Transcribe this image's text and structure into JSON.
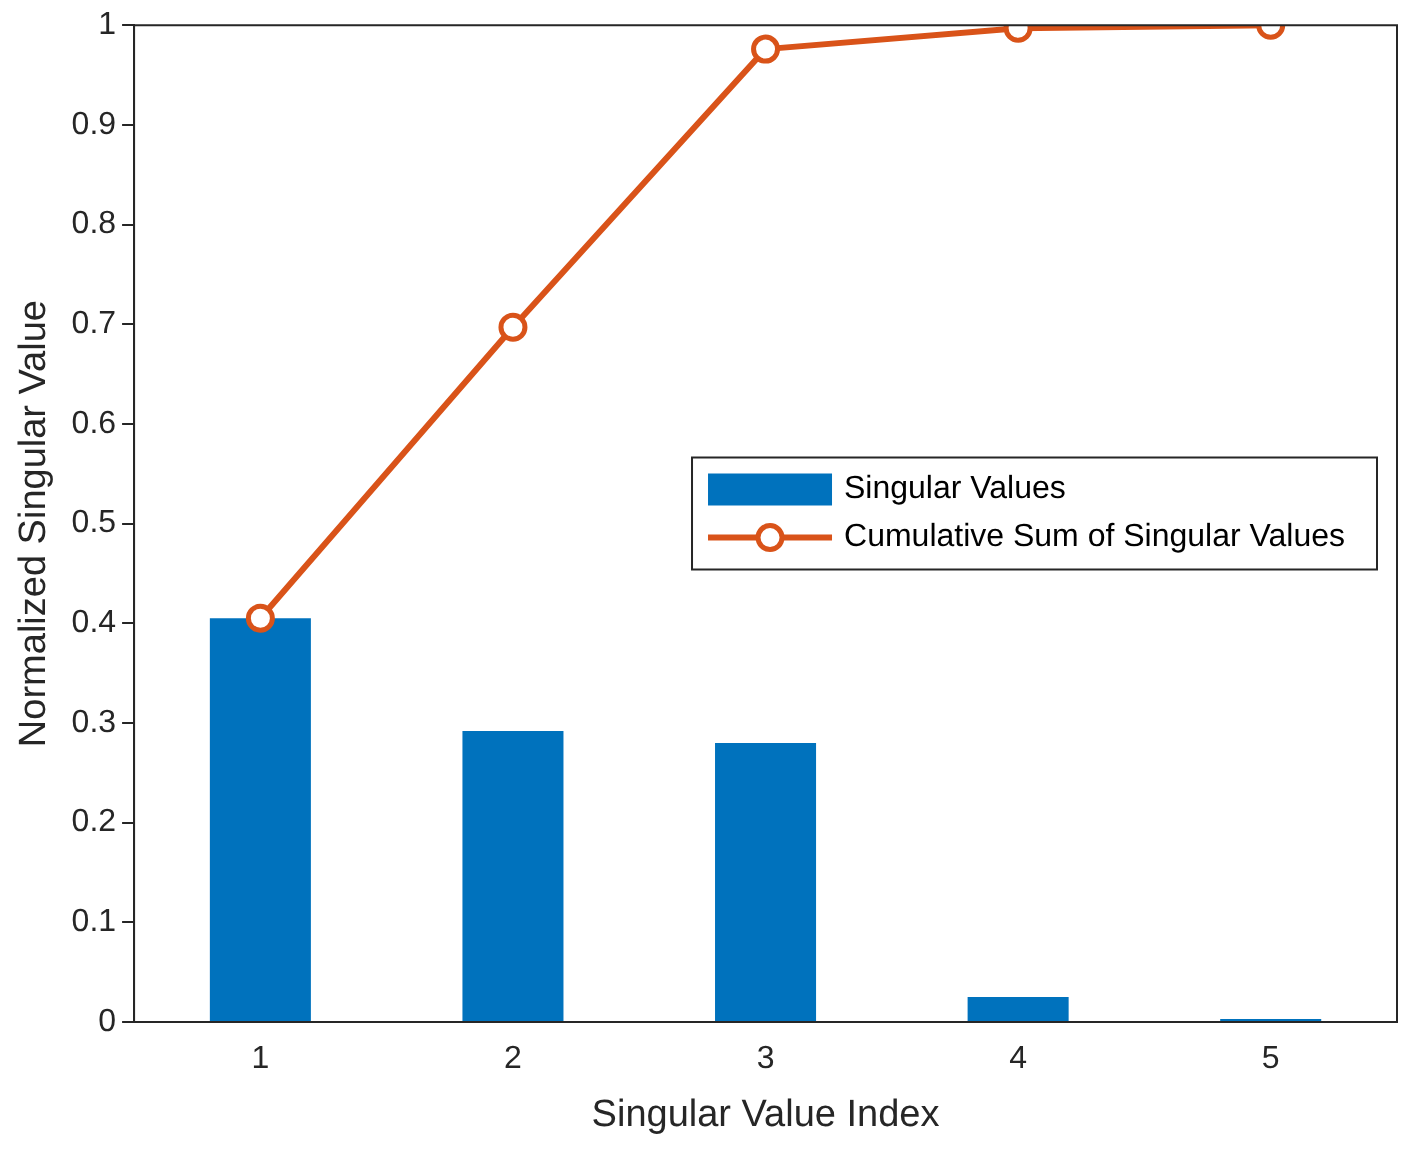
{
  "chart_data": {
    "type": "bar",
    "xlabel": "Singular Value Index",
    "ylabel": "Normalized Singular Value",
    "categories": [
      "1",
      "2",
      "3",
      "4",
      "5"
    ],
    "series": [
      {
        "name": "Singular Values",
        "color": "#0072bd",
        "values": [
          0.405,
          0.292,
          0.28,
          0.025,
          0.003
        ]
      },
      {
        "name": "Cumulative Sum of Singular Values",
        "type": "line",
        "color": "#d95319",
        "marker": "circle",
        "values": [
          0.405,
          0.697,
          0.976,
          0.997,
          1.0
        ]
      }
    ],
    "ylim": [
      0,
      1
    ],
    "yticks": [
      0,
      0.1,
      0.2,
      0.3,
      0.4,
      0.5,
      0.6,
      0.7,
      0.8,
      0.9,
      1
    ],
    "grid": false,
    "legend": "right"
  }
}
